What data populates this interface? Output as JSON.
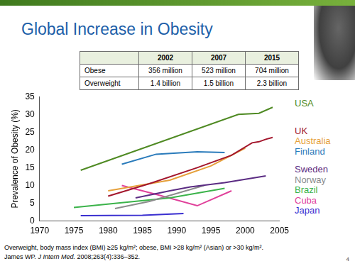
{
  "slide": {
    "title": "Global Increase in Obesity",
    "table": {
      "header": [
        "2002",
        "2007",
        "2015"
      ],
      "rows": [
        [
          "Obese",
          "356 million",
          "523 million",
          "704 million"
        ],
        [
          "Overweight",
          "1.4 billion",
          "1.5 billion",
          "2.3 billion"
        ]
      ]
    },
    "footnote": "Overweight, body mass index (BMI) ≥25 kg/m²; obese, BMI >28 kg/m² (Asian) or >30 kg/m².",
    "citation": {
      "authors": "James WP.",
      "journal": "J Intern Med.",
      "reference": "2008;263(4):336–352."
    },
    "page": "4"
  },
  "chart_data": {
    "type": "line",
    "y_label": "Prevalence of Obesity (%)",
    "xlim": [
      1970,
      2005
    ],
    "xticks": [
      1970,
      1975,
      1980,
      1985,
      1990,
      1995,
      2000,
      2005
    ],
    "ylim": [
      0,
      35
    ],
    "yticks": [
      0,
      5,
      10,
      15,
      20,
      25,
      30,
      35
    ],
    "grid": false,
    "legend": "right",
    "marker": "none",
    "series": [
      {
        "name": "USA",
        "color": "#4f8a23",
        "x": [
          1976,
          1999,
          2002,
          2004
        ],
        "values": [
          14.3,
          30,
          30.3,
          32
        ]
      },
      {
        "name": "UK",
        "color": "#a3162c",
        "x": [
          1980,
          1986,
          1993,
          1998,
          2001,
          2002,
          2003,
          2004
        ],
        "values": [
          7,
          10.5,
          15,
          18.5,
          22,
          22.3,
          23,
          23.5
        ]
      },
      {
        "name": "Australia",
        "color": "#e6a03a",
        "x": [
          1980,
          1989,
          1995,
          2000
        ],
        "values": [
          8.5,
          11.5,
          15.5,
          20.5
        ]
      },
      {
        "name": "Finland",
        "color": "#2a7bbb",
        "x": [
          1982,
          1987,
          1993,
          1997
        ],
        "values": [
          16,
          18.8,
          19.5,
          19.3
        ]
      },
      {
        "name": "Sweden",
        "color": "#5b2c83",
        "x": [
          1984,
          1989,
          1992,
          1997,
          2003
        ],
        "values": [
          6.5,
          8.5,
          9.6,
          10.8,
          12.7
        ]
      },
      {
        "name": "Norway",
        "color": "#8c8c8c",
        "x": [
          1981,
          1986,
          1994
        ],
        "values": [
          3.5,
          5.5,
          10
        ]
      },
      {
        "name": "Brazil",
        "color": "#3bb34a",
        "x": [
          1975,
          1989,
          1997
        ],
        "values": [
          3.8,
          6.5,
          9.2
        ]
      },
      {
        "name": "Cuba",
        "color": "#e0409a",
        "x": [
          1982,
          1987,
          1993,
          1998
        ],
        "values": [
          10,
          7.5,
          4.3,
          8.5
        ]
      },
      {
        "name": "Japan",
        "color": "#3a2fd0",
        "x": [
          1976,
          1985,
          1991
        ],
        "values": [
          1.5,
          1.6,
          2.1
        ]
      }
    ]
  }
}
